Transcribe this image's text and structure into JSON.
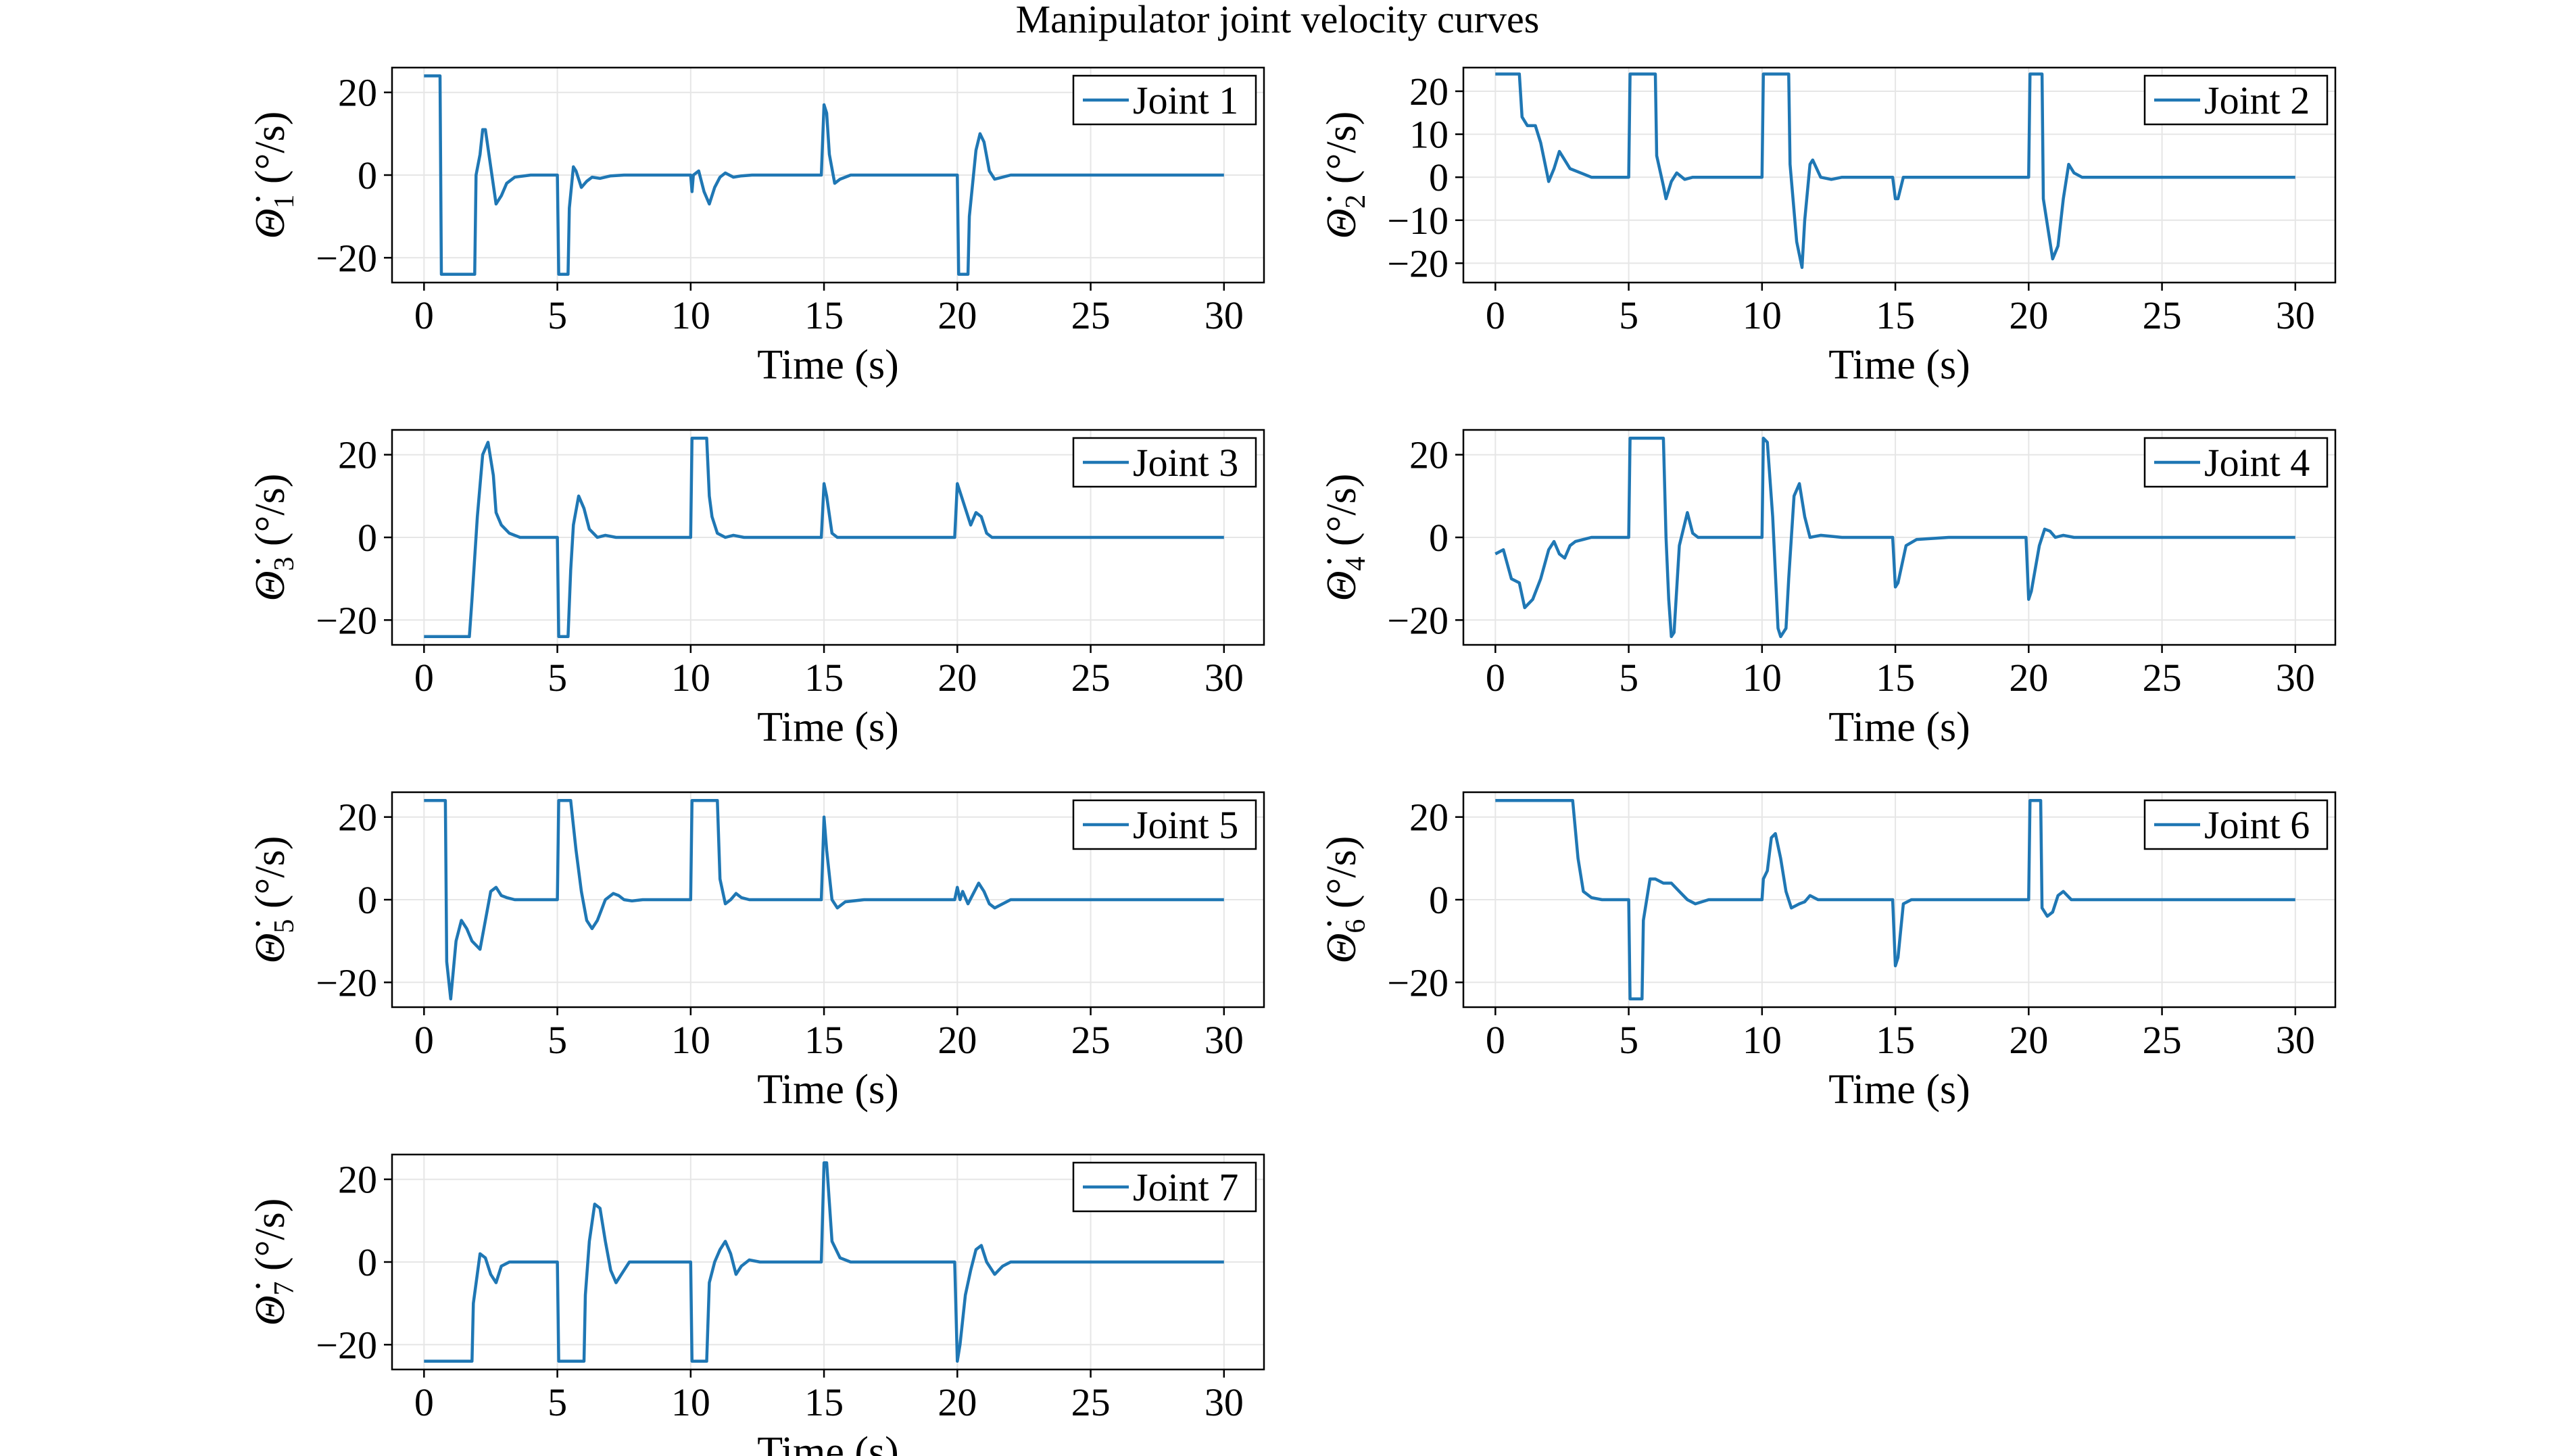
{
  "figure": {
    "title": "Manipulator joint velocity curves"
  },
  "colors": {
    "line": "#1f77b4",
    "grid": "#e6e6e6",
    "axis": "#000000"
  },
  "chart_data": [
    {
      "type": "line",
      "legend": "Joint 1",
      "ylabel_symbol": "Θ̇",
      "ylabel_subscript": "1",
      "ylabel_unit": "(°/s)",
      "xlabel": "Time (s)",
      "xlim": [
        -1.2,
        31.5
      ],
      "ylim": [
        -26,
        26
      ],
      "xticks": [
        0,
        5,
        10,
        15,
        20,
        25,
        30
      ],
      "yticks": [
        -20,
        0,
        20
      ],
      "x": [
        0,
        0.6,
        0.65,
        1.9,
        1.95,
        2.1,
        2.2,
        2.3,
        2.5,
        2.7,
        2.9,
        3.1,
        3.4,
        4,
        5,
        5.05,
        5.4,
        5.45,
        5.6,
        5.7,
        5.9,
        6.1,
        6.3,
        6.6,
        7,
        7.5,
        8.5,
        10,
        10.05,
        10.1,
        10.3,
        10.5,
        10.7,
        10.9,
        11.1,
        11.3,
        11.6,
        11.9,
        12.3,
        13,
        14.9,
        15.0,
        15.1,
        15.2,
        15.4,
        15.6,
        16,
        17,
        19.9,
        20,
        20.05,
        20.4,
        20.45,
        20.7,
        20.85,
        21,
        21.2,
        21.4,
        21.7,
        22,
        23,
        30
      ],
      "y": [
        24,
        24,
        -24,
        -24,
        0,
        5,
        11,
        11,
        2,
        -7,
        -5,
        -2,
        -0.5,
        0,
        0,
        -24,
        -24,
        -8,
        2,
        1,
        -3,
        -1.5,
        -0.5,
        -0.8,
        -0.2,
        0,
        0,
        0,
        -4,
        0,
        1,
        -4,
        -7,
        -3,
        -0.5,
        0.5,
        -0.5,
        -0.2,
        0,
        0,
        0,
        17,
        15,
        5,
        -2,
        -1,
        0,
        0,
        0,
        0,
        -24,
        -24,
        -10,
        6,
        10,
        8,
        1,
        -1,
        -0.5,
        0,
        0,
        0
      ]
    },
    {
      "type": "line",
      "legend": "Joint 2",
      "ylabel_symbol": "Θ̇",
      "ylabel_subscript": "2",
      "ylabel_unit": "(°/s)",
      "xlabel": "Time (s)",
      "xlim": [
        -1.2,
        31.5
      ],
      "ylim": [
        -24.5,
        25.5
      ],
      "xticks": [
        0,
        5,
        10,
        15,
        20,
        25,
        30
      ],
      "yticks": [
        -20,
        -10,
        0,
        10,
        20
      ],
      "x": [
        0,
        0.9,
        1.0,
        1.2,
        1.5,
        1.7,
        2.0,
        2.2,
        2.4,
        2.6,
        2.8,
        3.2,
        3.6,
        4,
        4.5,
        5,
        5.05,
        6.0,
        6.05,
        6.3,
        6.4,
        6.6,
        6.8,
        7.1,
        7.4,
        8,
        10,
        10.05,
        11.0,
        11.05,
        11.3,
        11.5,
        11.6,
        11.8,
        11.9,
        12.2,
        12.6,
        13,
        14.9,
        15.0,
        15.1,
        15.3,
        15.5,
        16,
        19.9,
        20,
        20.05,
        20.5,
        20.55,
        20.9,
        21.1,
        21.3,
        21.5,
        21.7,
        22,
        23,
        30
      ],
      "y": [
        24,
        24,
        14,
        12,
        12,
        8,
        -1,
        2,
        6,
        4,
        2,
        1,
        0,
        0,
        0,
        0,
        24,
        24,
        5,
        -2,
        -5,
        -1,
        1,
        -0.5,
        0,
        0,
        0,
        24,
        24,
        3,
        -15,
        -21,
        -10,
        3,
        4,
        0,
        -0.5,
        0,
        0,
        -5,
        -5,
        0,
        0,
        0,
        0,
        0,
        24,
        24,
        -5,
        -19,
        -16,
        -5,
        3,
        1,
        0,
        0,
        0
      ]
    },
    {
      "type": "line",
      "legend": "Joint 3",
      "ylabel_symbol": "Θ̇",
      "ylabel_subscript": "3",
      "ylabel_unit": "(°/s)",
      "xlabel": "Time (s)",
      "xlim": [
        -1.2,
        31.5
      ],
      "ylim": [
        -26,
        26
      ],
      "xticks": [
        0,
        5,
        10,
        15,
        20,
        25,
        30
      ],
      "yticks": [
        -20,
        0,
        20
      ],
      "x": [
        0,
        1.7,
        1.8,
        2.0,
        2.2,
        2.4,
        2.6,
        2.7,
        2.9,
        3.2,
        3.6,
        4,
        5,
        5.05,
        5.4,
        5.5,
        5.6,
        5.8,
        6.0,
        6.2,
        6.5,
        6.8,
        7.2,
        8,
        10,
        10.05,
        10.6,
        10.7,
        10.8,
        11.0,
        11.3,
        11.6,
        12,
        12.5,
        14.9,
        15.0,
        15.1,
        15.3,
        15.5,
        16,
        19.9,
        20,
        20.1,
        20.3,
        20.5,
        20.7,
        20.9,
        21.1,
        21.3,
        21.6,
        22,
        30
      ],
      "y": [
        -24,
        -24,
        -15,
        5,
        20,
        23,
        15,
        6,
        3,
        1,
        0,
        0,
        0,
        -24,
        -24,
        -8,
        3,
        10,
        7,
        2,
        0,
        0.5,
        0,
        0,
        0,
        24,
        24,
        10,
        5,
        1,
        0,
        0.5,
        0,
        0,
        0,
        13,
        10,
        1,
        0,
        0,
        0,
        13,
        11,
        7,
        3,
        6,
        5,
        1,
        0,
        0,
        0,
        0
      ]
    },
    {
      "type": "line",
      "legend": "Joint 4",
      "ylabel_symbol": "Θ̇",
      "ylabel_subscript": "4",
      "ylabel_unit": "(°/s)",
      "xlabel": "Time (s)",
      "xlim": [
        -1.2,
        31.5
      ],
      "ylim": [
        -26,
        26
      ],
      "xticks": [
        0,
        5,
        10,
        15,
        20,
        25,
        30
      ],
      "yticks": [
        -20,
        0,
        20
      ],
      "x": [
        0,
        0.3,
        0.6,
        0.9,
        1.1,
        1.4,
        1.7,
        2.0,
        2.2,
        2.4,
        2.6,
        2.8,
        3.0,
        3.3,
        3.6,
        4,
        5,
        5.05,
        6.3,
        6.4,
        6.5,
        6.6,
        6.7,
        6.9,
        7.2,
        7.4,
        7.6,
        8,
        10,
        10.05,
        10.2,
        10.4,
        10.6,
        10.7,
        10.9,
        11.0,
        11.2,
        11.4,
        11.6,
        11.8,
        12.2,
        13,
        14.9,
        15.0,
        15.1,
        15.4,
        15.8,
        17,
        19.9,
        20,
        20.1,
        20.4,
        20.6,
        20.8,
        21,
        21.3,
        21.7,
        22.5,
        30
      ],
      "y": [
        -4,
        -3,
        -10,
        -11,
        -17,
        -15,
        -10,
        -3,
        -1,
        -4,
        -5,
        -2,
        -1,
        -0.5,
        0,
        0,
        0,
        24,
        24,
        0,
        -15,
        -24,
        -23,
        -2,
        6,
        1,
        0,
        0,
        0,
        24,
        23,
        5,
        -22,
        -24,
        -22,
        -10,
        10,
        13,
        5,
        0,
        0.5,
        0,
        0,
        -12,
        -11,
        -2,
        -0.5,
        0,
        0,
        -15,
        -13,
        -2,
        2,
        1.5,
        0,
        0.5,
        0,
        0,
        0
      ]
    },
    {
      "type": "line",
      "legend": "Joint 5",
      "ylabel_symbol": "Θ̇",
      "ylabel_subscript": "5",
      "ylabel_unit": "(°/s)",
      "xlabel": "Time (s)",
      "xlim": [
        -1.2,
        31.5
      ],
      "ylim": [
        -26,
        26
      ],
      "xticks": [
        0,
        5,
        10,
        15,
        20,
        25,
        30
      ],
      "yticks": [
        -20,
        0,
        20
      ],
      "x": [
        0,
        0.8,
        0.85,
        1.0,
        1.2,
        1.4,
        1.6,
        1.8,
        2.1,
        2.3,
        2.5,
        2.7,
        2.9,
        3.1,
        3.4,
        3.8,
        5,
        5.05,
        5.5,
        5.7,
        5.9,
        6.1,
        6.3,
        6.5,
        6.8,
        7.1,
        7.3,
        7.5,
        7.8,
        8.2,
        9,
        10,
        10.05,
        11.0,
        11.1,
        11.3,
        11.5,
        11.7,
        11.9,
        12.2,
        12.6,
        14.9,
        15.0,
        15.1,
        15.3,
        15.5,
        15.8,
        16.5,
        19.9,
        20.0,
        20.1,
        20.2,
        20.4,
        20.6,
        20.8,
        21.0,
        21.2,
        21.4,
        22,
        30
      ],
      "y": [
        24,
        24,
        -15,
        -24,
        -10,
        -5,
        -7,
        -10,
        -12,
        -5,
        2,
        3,
        1,
        0.5,
        0,
        0,
        0,
        24,
        24,
        12,
        2,
        -5,
        -7,
        -5,
        0,
        1.5,
        1,
        0,
        -0.3,
        0,
        0,
        0,
        24,
        24,
        5,
        -1,
        0,
        1.5,
        0.5,
        0,
        0,
        0,
        20,
        12,
        0,
        -2,
        -0.5,
        0,
        0,
        3,
        0,
        2,
        -1,
        1.5,
        4,
        2,
        -1,
        -2,
        0,
        0
      ]
    },
    {
      "type": "line",
      "legend": "Joint 6",
      "ylabel_symbol": "Θ̇",
      "ylabel_subscript": "6",
      "ylabel_unit": "(°/s)",
      "xlabel": "Time (s)",
      "xlim": [
        -1.2,
        31.5
      ],
      "ylim": [
        -26,
        26
      ],
      "xticks": [
        0,
        5,
        10,
        15,
        20,
        25,
        30
      ],
      "yticks": [
        -20,
        0,
        20
      ],
      "x": [
        0,
        2.9,
        3.1,
        3.3,
        3.6,
        4,
        5,
        5.05,
        5.5,
        5.55,
        5.8,
        6.0,
        6.3,
        6.6,
        6.9,
        7.2,
        7.5,
        8,
        9,
        10,
        10.05,
        10.2,
        10.35,
        10.5,
        10.7,
        10.9,
        11.1,
        11.4,
        11.6,
        11.8,
        12.1,
        12.5,
        14.9,
        15.0,
        15.1,
        15.3,
        15.6,
        16,
        19.9,
        20,
        20.05,
        20.45,
        20.5,
        20.7,
        20.9,
        21.1,
        21.3,
        21.6,
        22,
        30
      ],
      "y": [
        24,
        24,
        10,
        2,
        0.5,
        0,
        0,
        -24,
        -24,
        -5,
        5,
        5,
        4,
        4,
        2,
        0,
        -1,
        0,
        0,
        0,
        5,
        7,
        15,
        16,
        10,
        2,
        -2,
        -1,
        -0.5,
        1,
        0,
        0,
        0,
        -16,
        -14,
        -1,
        0,
        0,
        0,
        0,
        24,
        24,
        -2,
        -4,
        -3,
        1,
        2,
        0,
        0,
        0
      ]
    },
    {
      "type": "line",
      "legend": "Joint 7",
      "ylabel_symbol": "Θ̇",
      "ylabel_subscript": "7",
      "ylabel_unit": "(°/s)",
      "xlabel": "Time (s)",
      "xlim": [
        -1.2,
        31.5
      ],
      "ylim": [
        -26,
        26
      ],
      "xticks": [
        0,
        5,
        10,
        15,
        20,
        25,
        30
      ],
      "yticks": [
        -20,
        0,
        20
      ],
      "x": [
        0,
        1.8,
        1.85,
        2.1,
        2.3,
        2.5,
        2.7,
        2.9,
        3.2,
        3.6,
        4.5,
        5,
        5.05,
        6.0,
        6.05,
        6.2,
        6.4,
        6.6,
        6.8,
        7.0,
        7.2,
        7.4,
        7.7,
        8.2,
        10,
        10.05,
        10.6,
        10.7,
        10.9,
        11.1,
        11.3,
        11.5,
        11.7,
        11.9,
        12.2,
        12.6,
        14.9,
        15.0,
        15.1,
        15.3,
        15.6,
        16,
        19.9,
        20.0,
        20.1,
        20.3,
        20.5,
        20.7,
        20.9,
        21.1,
        21.4,
        21.7,
        22,
        30
      ],
      "y": [
        -24,
        -24,
        -10,
        2,
        1,
        -3,
        -5,
        -1,
        0,
        0,
        0,
        0,
        -24,
        -24,
        -8,
        5,
        14,
        13,
        5,
        -2,
        -5,
        -3,
        0,
        0,
        0,
        -24,
        -24,
        -5,
        0,
        3,
        5,
        2,
        -3,
        -1,
        0.5,
        0,
        0,
        24,
        24,
        5,
        1,
        0,
        0,
        -24,
        -20,
        -8,
        -2,
        3,
        4,
        0,
        -3,
        -1,
        0,
        0
      ]
    }
  ]
}
